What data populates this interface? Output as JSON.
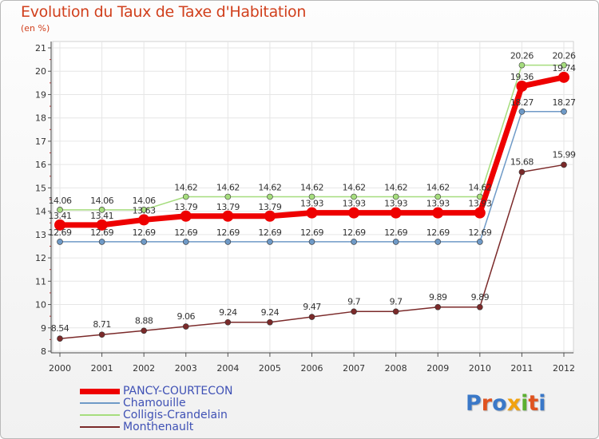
{
  "header": {
    "title": "Evolution du Taux de Taxe d'Habitation",
    "subtitle": "(en %)"
  },
  "logo": {
    "text": "Proxiti",
    "colors": [
      "#3a78c8",
      "#e0531f",
      "#3a78c8",
      "#f1a20f",
      "#5bb030",
      "#e0531f",
      "#3a78c8"
    ]
  },
  "chart_data": {
    "type": "line",
    "title": "Evolution du Taux de Taxe d'Habitation",
    "ylabel": "(en %)",
    "xlabel": "",
    "x": [
      "2000",
      "2001",
      "2002",
      "2003",
      "2004",
      "2005",
      "2006",
      "2007",
      "2008",
      "2009",
      "2010",
      "2011",
      "2012"
    ],
    "ylim": [
      8,
      21
    ],
    "yticks": [
      "8",
      "9",
      "10",
      "11",
      "12",
      "13",
      "14",
      "15",
      "16",
      "17",
      "18",
      "19",
      "20",
      "21"
    ],
    "grid": true,
    "legend_position": "bottom-left",
    "series": [
      {
        "name": "PANCY-COURTECON",
        "color": "#ee0000",
        "values": [
          13.41,
          13.41,
          13.63,
          13.79,
          13.79,
          13.79,
          13.93,
          13.93,
          13.93,
          13.93,
          13.93,
          19.36,
          19.74
        ],
        "labels": [
          "13.41",
          "13.41",
          "13.63",
          "13.79",
          "13.79",
          "13.79",
          "13.93",
          "13.93",
          "13.93",
          "13.93",
          "13.93",
          "19.36",
          "19.74"
        ]
      },
      {
        "name": "Chamouille",
        "color": "#6f9ac7",
        "values": [
          12.69,
          12.69,
          12.69,
          12.69,
          12.69,
          12.69,
          12.69,
          12.69,
          12.69,
          12.69,
          12.69,
          18.27,
          18.27
        ],
        "labels": [
          "12.69",
          "12.69",
          "12.69",
          "12.69",
          "12.69",
          "12.69",
          "12.69",
          "12.69",
          "12.69",
          "12.69",
          "12.69",
          "18.27",
          "18.27"
        ]
      },
      {
        "name": "Colligis-Crandelain",
        "color": "#a6dd7e",
        "values": [
          14.06,
          14.06,
          14.06,
          14.62,
          14.62,
          14.62,
          14.62,
          14.62,
          14.62,
          14.62,
          14.62,
          20.26,
          20.26
        ],
        "labels": [
          "14.06",
          "14.06",
          "14.06",
          "14.62",
          "14.62",
          "14.62",
          "14.62",
          "14.62",
          "14.62",
          "14.62",
          "14.62",
          "20.26",
          "20.26"
        ]
      },
      {
        "name": "Monthenault",
        "color": "#7b2a2a",
        "values": [
          8.54,
          8.71,
          8.88,
          9.06,
          9.24,
          9.24,
          9.47,
          9.7,
          9.7,
          9.89,
          9.89,
          15.68,
          15.99
        ],
        "labels": [
          "8.54",
          "8.71",
          "8.88",
          "9.06",
          "9.24",
          "9.24",
          "9.47",
          "9.7",
          "9.7",
          "9.89",
          "9.89",
          "15.68",
          "15.99"
        ]
      }
    ]
  }
}
